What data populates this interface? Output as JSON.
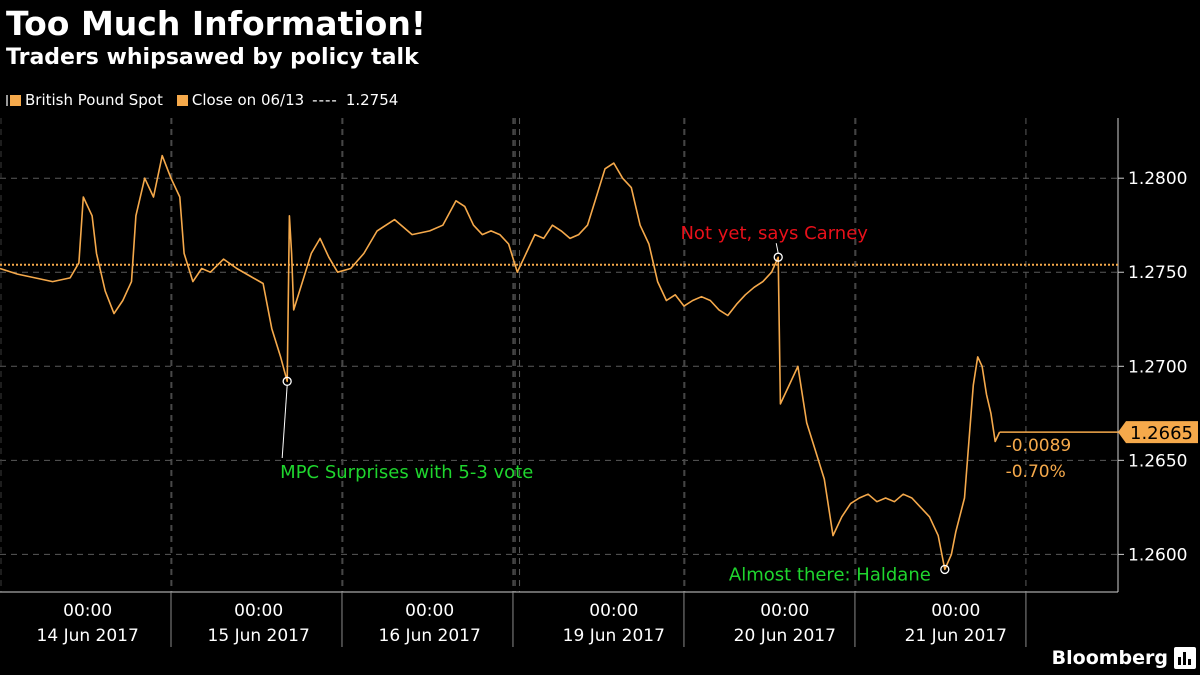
{
  "header": {
    "title": "Too Much Information!",
    "subtitle": "Traders whipsawed by policy talk"
  },
  "legend": {
    "series_label": "British Pound Spot",
    "close_label": "Close on 06/13",
    "close_separator": "----",
    "close_value": "1.2754"
  },
  "brand": {
    "name": "Bloomberg"
  },
  "colors": {
    "background": "#000000",
    "series": "#f5a94b",
    "close_line": "#f5a94b",
    "grid": "#5a5a5a",
    "axis_text": "#ffffff",
    "annotation_red": "#e8101a",
    "annotation_green": "#1fd62e",
    "change_text": "#f5a94b",
    "last_value_bg": "#f5a94b"
  },
  "chart_data": {
    "type": "line",
    "series": [
      {
        "name": "British Pound Spot",
        "points": [
          [
            0,
            1.2752
          ],
          [
            4,
            1.2749
          ],
          [
            8,
            1.2747
          ],
          [
            12,
            1.2745
          ],
          [
            16,
            1.2747
          ],
          [
            18,
            1.2755
          ],
          [
            19,
            1.279
          ],
          [
            21,
            1.278
          ],
          [
            22,
            1.276
          ],
          [
            24,
            1.274
          ],
          [
            26,
            1.2728
          ],
          [
            28,
            1.2735
          ],
          [
            30,
            1.2745
          ],
          [
            31,
            1.278
          ],
          [
            33,
            1.28
          ],
          [
            35,
            1.279
          ],
          [
            37,
            1.2812
          ],
          [
            39,
            1.28
          ],
          [
            41,
            1.279
          ],
          [
            42,
            1.276
          ],
          [
            44,
            1.2745
          ],
          [
            46,
            1.2752
          ],
          [
            48,
            1.275
          ],
          [
            51,
            1.2757
          ],
          [
            54,
            1.2752
          ],
          [
            57,
            1.2748
          ],
          [
            60,
            1.2744
          ],
          [
            62,
            1.272
          ],
          [
            64,
            1.2705
          ],
          [
            65.5,
            1.2692
          ],
          [
            66,
            1.278
          ],
          [
            66.5,
            1.276
          ],
          [
            67,
            1.273
          ],
          [
            69,
            1.2745
          ],
          [
            71,
            1.276
          ],
          [
            73,
            1.2768
          ],
          [
            75,
            1.2758
          ],
          [
            77,
            1.275
          ],
          [
            80,
            1.2752
          ],
          [
            83,
            1.276
          ],
          [
            86,
            1.2772
          ],
          [
            90,
            1.2778
          ],
          [
            94,
            1.277
          ],
          [
            98,
            1.2772
          ],
          [
            101,
            1.2775
          ],
          [
            104,
            1.2788
          ],
          [
            106,
            1.2785
          ],
          [
            108,
            1.2775
          ],
          [
            110,
            1.277
          ],
          [
            112,
            1.2772
          ],
          [
            114,
            1.277
          ],
          [
            116,
            1.2765
          ],
          [
            118,
            1.275
          ],
          [
            120,
            1.276
          ],
          [
            122,
            1.277
          ],
          [
            124,
            1.2768
          ],
          [
            126,
            1.2775
          ],
          [
            128,
            1.2772
          ],
          [
            130,
            1.2768
          ],
          [
            132,
            1.277
          ],
          [
            134,
            1.2775
          ],
          [
            136,
            1.279
          ],
          [
            138,
            1.2805
          ],
          [
            140,
            1.2808
          ],
          [
            142,
            1.28
          ],
          [
            144,
            1.2795
          ],
          [
            146,
            1.2775
          ],
          [
            148,
            1.2765
          ],
          [
            150,
            1.2745
          ],
          [
            152,
            1.2735
          ],
          [
            154,
            1.2738
          ],
          [
            156,
            1.2732
          ],
          [
            158,
            1.2735
          ],
          [
            160,
            1.2737
          ],
          [
            162,
            1.2735
          ],
          [
            164,
            1.273
          ],
          [
            166,
            1.2727
          ],
          [
            168,
            1.2733
          ],
          [
            170,
            1.2738
          ],
          [
            172,
            1.2742
          ],
          [
            174,
            1.2745
          ],
          [
            176,
            1.275
          ],
          [
            177.5,
            1.2758
          ],
          [
            178,
            1.268
          ],
          [
            180,
            1.269
          ],
          [
            182,
            1.27
          ],
          [
            184,
            1.267
          ],
          [
            186,
            1.2655
          ],
          [
            188,
            1.264
          ],
          [
            190,
            1.261
          ],
          [
            192,
            1.262
          ],
          [
            194,
            1.2627
          ],
          [
            196,
            1.263
          ],
          [
            198,
            1.2632
          ],
          [
            200,
            1.2628
          ],
          [
            202,
            1.263
          ],
          [
            204,
            1.2628
          ],
          [
            206,
            1.2632
          ],
          [
            208,
            1.263
          ],
          [
            210,
            1.2625
          ],
          [
            212,
            1.262
          ],
          [
            214,
            1.261
          ],
          [
            215.5,
            1.2592
          ],
          [
            217,
            1.26
          ],
          [
            218,
            1.2612
          ],
          [
            220,
            1.263
          ],
          [
            221,
            1.266
          ],
          [
            222,
            1.269
          ],
          [
            223,
            1.2705
          ],
          [
            224,
            1.27
          ],
          [
            225,
            1.2685
          ],
          [
            226,
            1.2675
          ],
          [
            227,
            1.266
          ],
          [
            228,
            1.2665
          ]
        ]
      }
    ],
    "close_value": 1.2754,
    "last_value": "1.2665",
    "change_abs": "-0.0089",
    "change_pct": "-0.70%",
    "x_ticks": [
      {
        "x": 20,
        "time": "00:00",
        "date": "14 Jun 2017"
      },
      {
        "x": 59,
        "time": "00:00",
        "date": "15 Jun 2017"
      },
      {
        "x": 98,
        "time": "00:00",
        "date": "16 Jun 2017"
      },
      {
        "x": 140,
        "time": "00:00",
        "date": "19 Jun 2017"
      },
      {
        "x": 179,
        "time": "00:00",
        "date": "20 Jun 2017"
      },
      {
        "x": 218,
        "time": "00:00",
        "date": "21 Jun 2017"
      }
    ],
    "x_range": [
      0,
      255
    ],
    "day_boundaries": [
      39,
      78,
      117,
      156,
      195,
      234
    ],
    "hour_markers": [
      0,
      39,
      78,
      117,
      156,
      195
    ],
    "weekend_marks": [
      117.5,
      118.5
    ],
    "y_ticks": [
      1.26,
      1.265,
      1.27,
      1.275,
      1.28
    ],
    "y_tick_labels": [
      "1.2600",
      "1.2650",
      "1.2700",
      "1.2750",
      "1.2800"
    ],
    "ylim": [
      1.258,
      1.2832
    ],
    "grid": true,
    "annotations": [
      {
        "text": "Not yet, says Carney",
        "x": 177.5,
        "y": 1.2758,
        "color_key": "annotation_red",
        "placement": "above"
      },
      {
        "text": "MPC Surprises with 5-3 vote",
        "x": 65.5,
        "y": 1.2692,
        "color_key": "annotation_green",
        "placement": "below"
      },
      {
        "text": "Almost there: Haldane",
        "x": 215.5,
        "y": 1.2592,
        "color_key": "annotation_green",
        "placement": "left"
      }
    ]
  }
}
